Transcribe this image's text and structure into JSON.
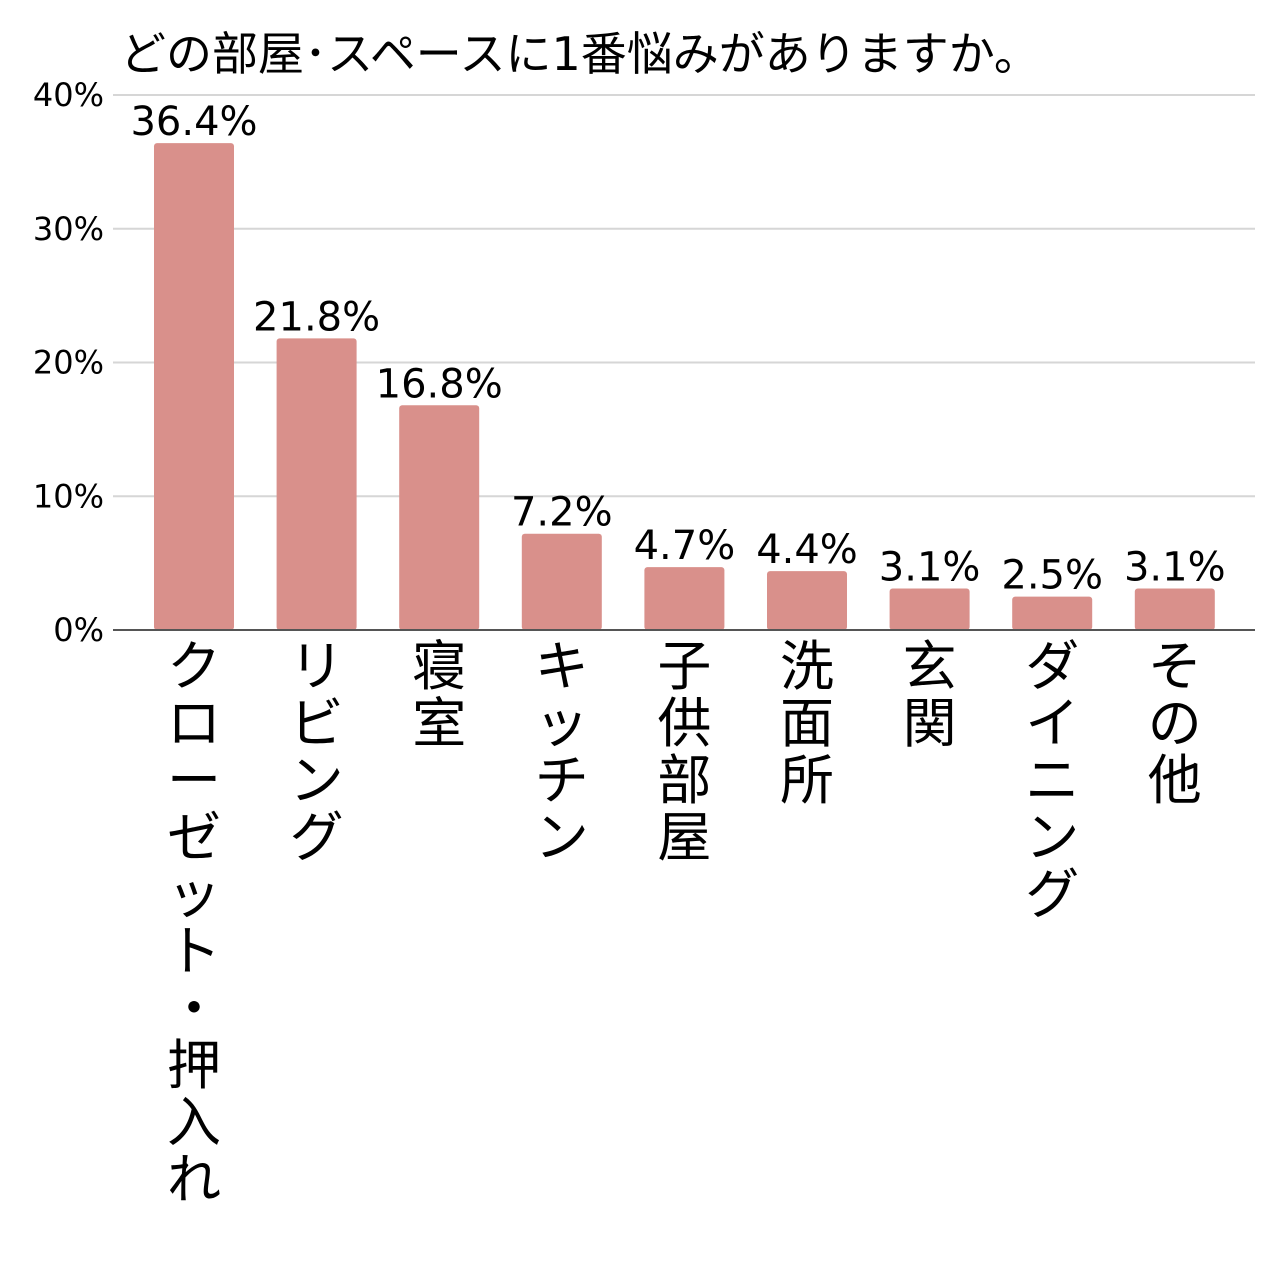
{
  "chart_data": {
    "type": "bar",
    "title": "どの部屋･スペースに1番悩みがありますか。",
    "xlabel": "",
    "ylabel": "",
    "categories": [
      "クローゼット・押入れ",
      "リビング",
      "寝室",
      "キッチン",
      "子供部屋",
      "洗面所",
      "玄関",
      "ダイニング",
      "その他"
    ],
    "values": [
      36.4,
      21.8,
      16.8,
      7.2,
      4.7,
      4.4,
      3.1,
      2.5,
      3.1
    ],
    "value_labels": [
      "36.4%",
      "21.8%",
      "16.8%",
      "7.2%",
      "4.7%",
      "4.4%",
      "3.1%",
      "2.5%",
      "3.1%"
    ],
    "ylim": [
      0,
      40
    ],
    "yticks": [
      0,
      10,
      20,
      30,
      40
    ],
    "ytick_labels": [
      "0%",
      "10%",
      "20%",
      "30%",
      "40%"
    ],
    "grid": true,
    "legend": "none",
    "bar_color": "#d9908b",
    "gridline_color": "#d6d6d6",
    "axis_color": "#555555"
  }
}
